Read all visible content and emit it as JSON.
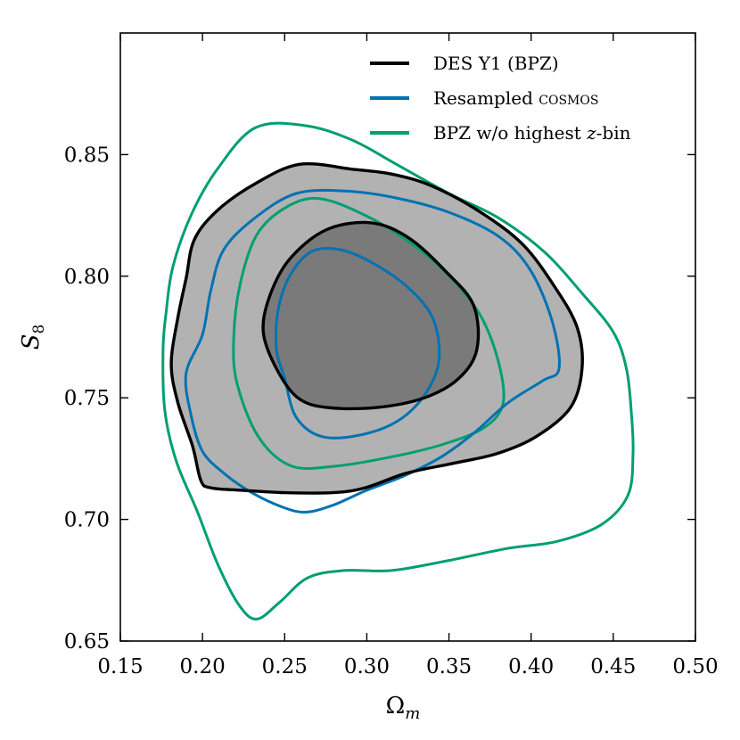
{
  "chart_data": {
    "type": "contour",
    "title": "",
    "xlabel": "Ω",
    "xlabel_sub": "m",
    "ylabel": "S",
    "ylabel_sub": "8",
    "xlim": [
      0.15,
      0.5
    ],
    "ylim": [
      0.65,
      0.9
    ],
    "xticks": [
      0.15,
      0.2,
      0.25,
      0.3,
      0.35,
      0.4,
      0.45,
      0.5
    ],
    "xtick_labels": [
      "0.15",
      "0.20",
      "0.25",
      "0.30",
      "0.35",
      "0.40",
      "0.45",
      "0.50"
    ],
    "yticks": [
      0.65,
      0.7,
      0.75,
      0.8,
      0.85
    ],
    "ytick_labels": [
      "0.65",
      "0.70",
      "0.75",
      "0.80",
      "0.85"
    ],
    "grid": false,
    "legend_position": "top-right",
    "legend": [
      {
        "series": "des",
        "text": "DES Y1 (BPZ)"
      },
      {
        "series": "cosmos",
        "prefix": "Resampled ",
        "sc": "cosmos"
      },
      {
        "series": "bpz",
        "prefix": "BPZ w/o highest ",
        "italic": "z",
        "suffix": "-bin"
      }
    ],
    "series": [
      {
        "id": "des",
        "name": "DES Y1 (BPZ)",
        "color": "#000000",
        "filled": true,
        "fill_outer": "#b2b2b2",
        "fill_inner": "#7a7a7a",
        "outer": [
          [
            0.199,
            0.716
          ],
          [
            0.205,
            0.713
          ],
          [
            0.224,
            0.712
          ],
          [
            0.25,
            0.711
          ],
          [
            0.279,
            0.711
          ],
          [
            0.299,
            0.713
          ],
          [
            0.324,
            0.719
          ],
          [
            0.352,
            0.723
          ],
          [
            0.379,
            0.727
          ],
          [
            0.403,
            0.734
          ],
          [
            0.424,
            0.746
          ],
          [
            0.431,
            0.762
          ],
          [
            0.428,
            0.779
          ],
          [
            0.414,
            0.796
          ],
          [
            0.395,
            0.813
          ],
          [
            0.37,
            0.826
          ],
          [
            0.34,
            0.837
          ],
          [
            0.315,
            0.842
          ],
          [
            0.291,
            0.844
          ],
          [
            0.259,
            0.846
          ],
          [
            0.232,
            0.838
          ],
          [
            0.209,
            0.827
          ],
          [
            0.195,
            0.815
          ],
          [
            0.19,
            0.799
          ],
          [
            0.185,
            0.783
          ],
          [
            0.181,
            0.764
          ],
          [
            0.185,
            0.748
          ],
          [
            0.194,
            0.73
          ]
        ],
        "inner": [
          [
            0.245,
            0.762
          ],
          [
            0.237,
            0.777
          ],
          [
            0.241,
            0.792
          ],
          [
            0.253,
            0.807
          ],
          [
            0.275,
            0.819
          ],
          [
            0.302,
            0.822
          ],
          [
            0.325,
            0.816
          ],
          [
            0.348,
            0.802
          ],
          [
            0.365,
            0.788
          ],
          [
            0.367,
            0.77
          ],
          [
            0.356,
            0.758
          ],
          [
            0.335,
            0.75
          ],
          [
            0.306,
            0.746
          ],
          [
            0.276,
            0.746
          ],
          [
            0.258,
            0.75
          ]
        ]
      },
      {
        "id": "cosmos",
        "name": "Resampled COSMOS",
        "color": "#0072b2",
        "filled": false,
        "outer": [
          [
            0.19,
            0.76
          ],
          [
            0.193,
            0.743
          ],
          [
            0.2,
            0.728
          ],
          [
            0.213,
            0.719
          ],
          [
            0.23,
            0.711
          ],
          [
            0.249,
            0.705
          ],
          [
            0.263,
            0.703
          ],
          [
            0.28,
            0.706
          ],
          [
            0.3,
            0.712
          ],
          [
            0.323,
            0.718
          ],
          [
            0.346,
            0.726
          ],
          [
            0.366,
            0.736
          ],
          [
            0.386,
            0.748
          ],
          [
            0.407,
            0.757
          ],
          [
            0.417,
            0.762
          ],
          [
            0.413,
            0.781
          ],
          [
            0.4,
            0.802
          ],
          [
            0.381,
            0.816
          ],
          [
            0.351,
            0.826
          ],
          [
            0.319,
            0.832
          ],
          [
            0.287,
            0.835
          ],
          [
            0.257,
            0.834
          ],
          [
            0.232,
            0.824
          ],
          [
            0.213,
            0.811
          ],
          [
            0.205,
            0.794
          ],
          [
            0.2,
            0.776
          ]
        ],
        "inner": [
          [
            0.25,
            0.758
          ],
          [
            0.245,
            0.77
          ],
          [
            0.246,
            0.786
          ],
          [
            0.253,
            0.8
          ],
          [
            0.266,
            0.81
          ],
          [
            0.283,
            0.811
          ],
          [
            0.302,
            0.806
          ],
          [
            0.324,
            0.796
          ],
          [
            0.34,
            0.783
          ],
          [
            0.344,
            0.766
          ],
          [
            0.336,
            0.752
          ],
          [
            0.32,
            0.741
          ],
          [
            0.298,
            0.735
          ],
          [
            0.273,
            0.734
          ],
          [
            0.257,
            0.742
          ]
        ]
      },
      {
        "id": "bpz",
        "name": "BPZ w/o highest z-bin",
        "color": "#009e73",
        "filled": false,
        "outer": [
          [
            0.176,
            0.77
          ],
          [
            0.177,
            0.745
          ],
          [
            0.184,
            0.724
          ],
          [
            0.197,
            0.703
          ],
          [
            0.209,
            0.682
          ],
          [
            0.222,
            0.665
          ],
          [
            0.233,
            0.659
          ],
          [
            0.247,
            0.666
          ],
          [
            0.264,
            0.676
          ],
          [
            0.286,
            0.679
          ],
          [
            0.315,
            0.679
          ],
          [
            0.349,
            0.683
          ],
          [
            0.385,
            0.688
          ],
          [
            0.416,
            0.691
          ],
          [
            0.443,
            0.698
          ],
          [
            0.459,
            0.71
          ],
          [
            0.462,
            0.727
          ],
          [
            0.461,
            0.744
          ],
          [
            0.458,
            0.762
          ],
          [
            0.45,
            0.777
          ],
          [
            0.431,
            0.793
          ],
          [
            0.408,
            0.81
          ],
          [
            0.38,
            0.824
          ],
          [
            0.35,
            0.834
          ],
          [
            0.318,
            0.846
          ],
          [
            0.291,
            0.856
          ],
          [
            0.262,
            0.862
          ],
          [
            0.232,
            0.861
          ],
          [
            0.209,
            0.844
          ],
          [
            0.193,
            0.825
          ],
          [
            0.182,
            0.804
          ],
          [
            0.178,
            0.786
          ]
        ],
        "inner": [
          [
            0.221,
            0.756
          ],
          [
            0.219,
            0.775
          ],
          [
            0.223,
            0.797
          ],
          [
            0.233,
            0.817
          ],
          [
            0.25,
            0.828
          ],
          [
            0.27,
            0.832
          ],
          [
            0.296,
            0.826
          ],
          [
            0.324,
            0.815
          ],
          [
            0.349,
            0.801
          ],
          [
            0.369,
            0.784
          ],
          [
            0.38,
            0.765
          ],
          [
            0.383,
            0.748
          ],
          [
            0.372,
            0.738
          ],
          [
            0.347,
            0.731
          ],
          [
            0.317,
            0.726
          ],
          [
            0.282,
            0.722
          ],
          [
            0.254,
            0.722
          ],
          [
            0.234,
            0.734
          ]
        ]
      }
    ]
  }
}
